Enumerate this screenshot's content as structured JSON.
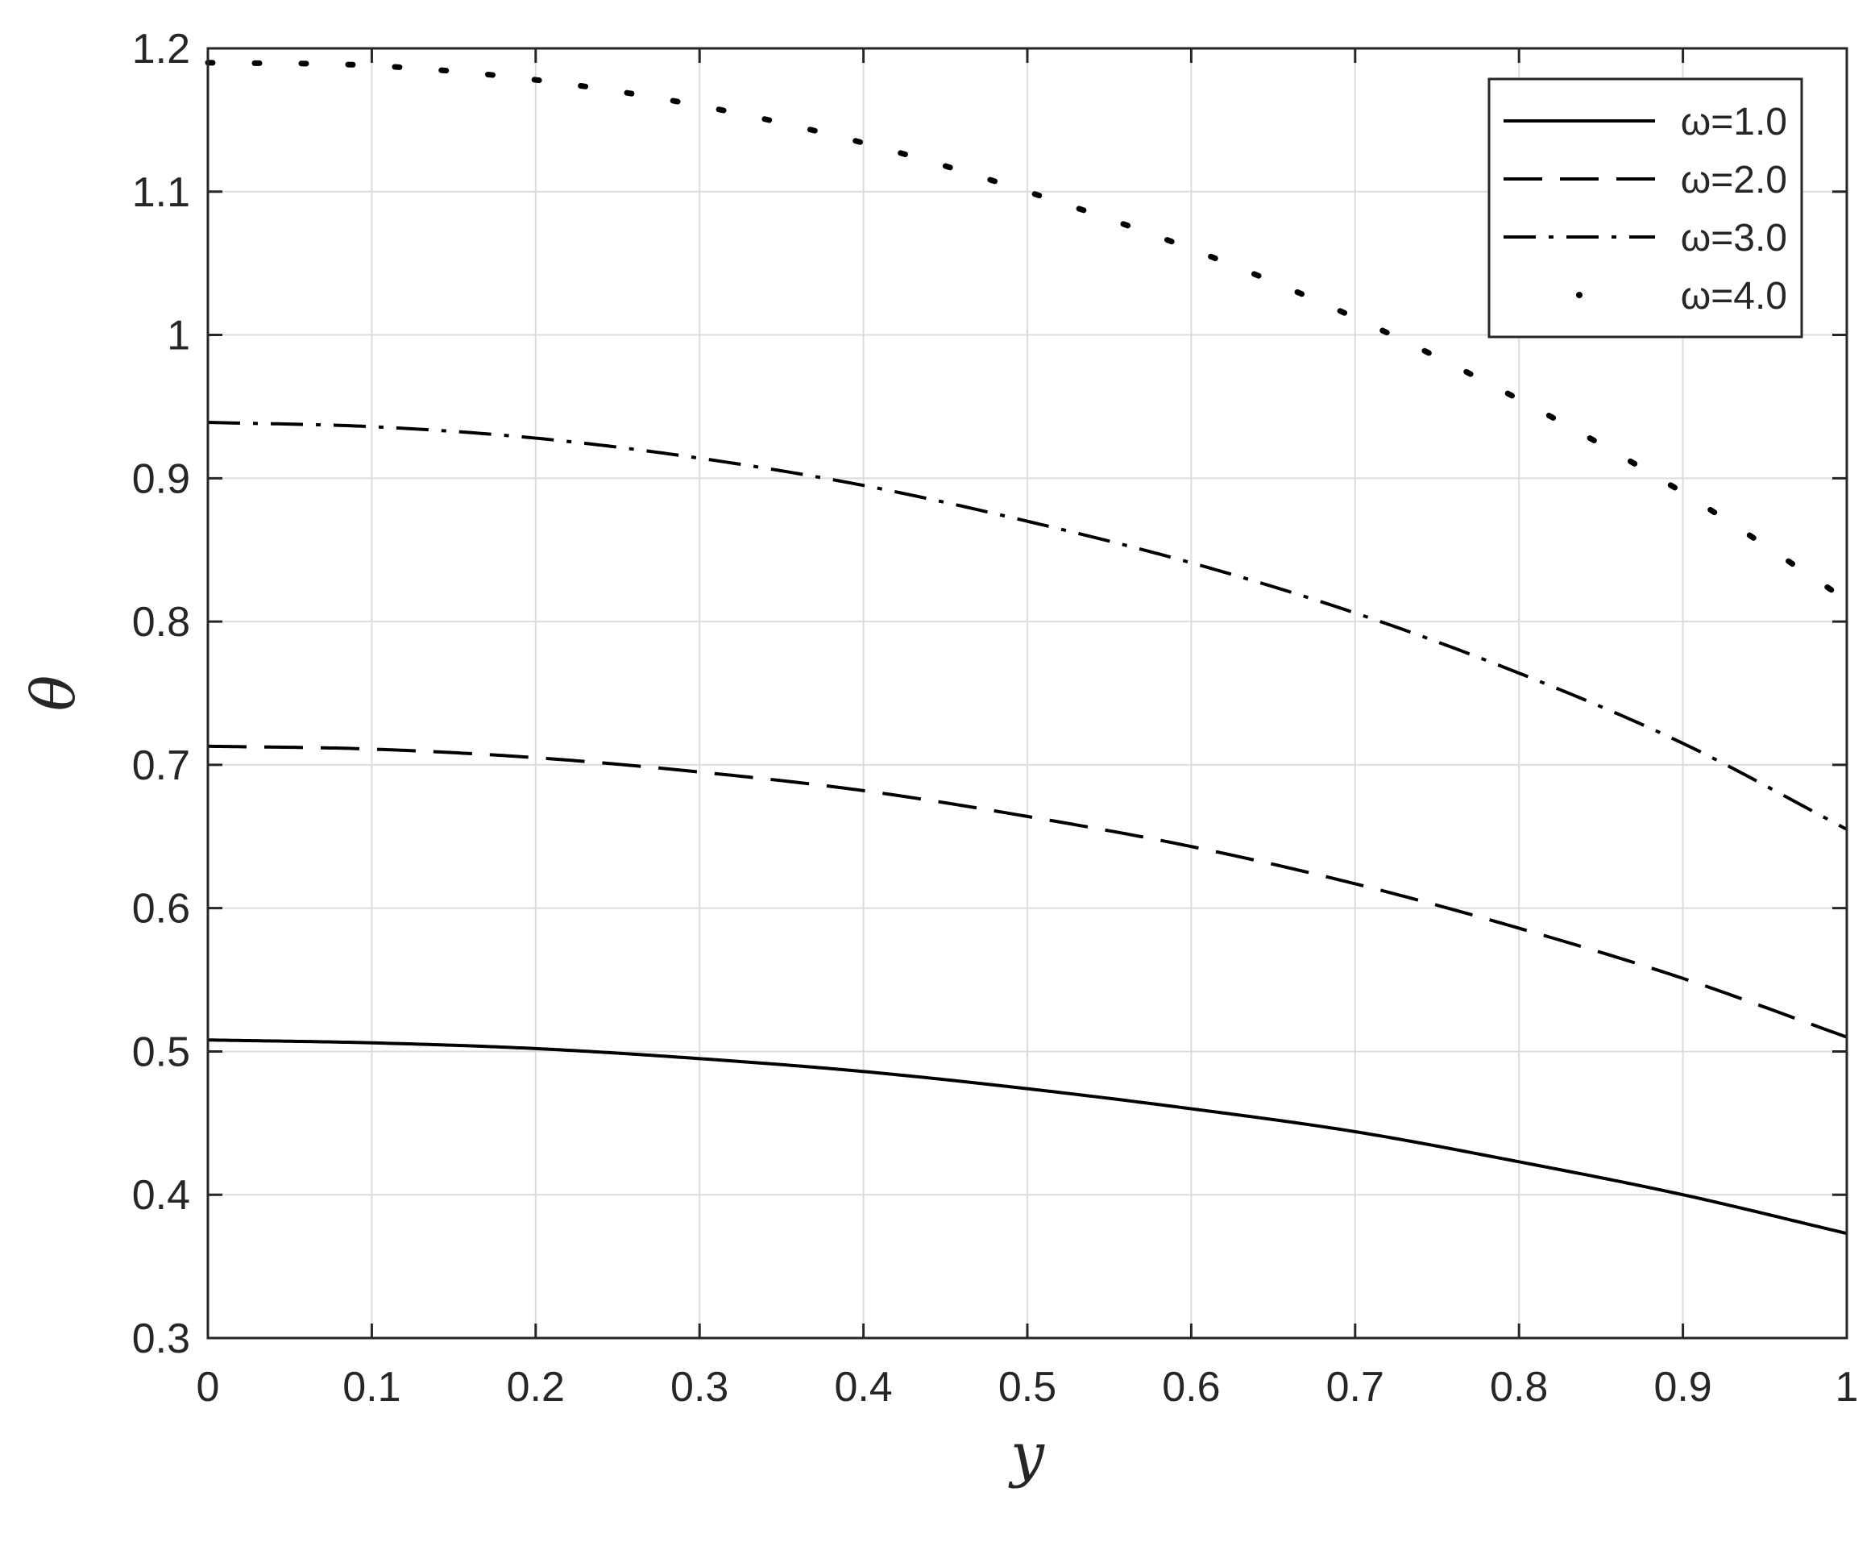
{
  "chart_data": {
    "type": "line",
    "title": "",
    "xlabel": "y",
    "ylabel": "θ",
    "xlim": [
      0,
      1
    ],
    "ylim": [
      0.3,
      1.2
    ],
    "xticks": [
      "0",
      "0.1",
      "0.2",
      "0.3",
      "0.4",
      "0.5",
      "0.6",
      "0.7",
      "0.8",
      "0.9",
      "1"
    ],
    "yticks": [
      "0.3",
      "0.4",
      "0.5",
      "0.6",
      "0.7",
      "0.8",
      "0.9",
      "1",
      "1.1",
      "1.2"
    ],
    "grid": true,
    "legend_position": "top-right",
    "x": [
      0,
      0.1,
      0.2,
      0.3,
      0.4,
      0.5,
      0.6,
      0.7,
      0.8,
      0.9,
      1.0
    ],
    "series": [
      {
        "name": "ω=1.0",
        "style": "solid",
        "values": [
          0.508,
          0.506,
          0.502,
          0.495,
          0.486,
          0.474,
          0.46,
          0.444,
          0.423,
          0.4,
          0.373
        ]
      },
      {
        "name": "ω=2.0",
        "style": "dashed",
        "values": [
          0.713,
          0.711,
          0.705,
          0.695,
          0.682,
          0.664,
          0.643,
          0.617,
          0.586,
          0.551,
          0.51
        ]
      },
      {
        "name": "ω=3.0",
        "style": "dashdot",
        "values": [
          0.939,
          0.936,
          0.928,
          0.914,
          0.895,
          0.87,
          0.841,
          0.806,
          0.764,
          0.715,
          0.655
        ]
      },
      {
        "name": "ω=4.0",
        "style": "dotted",
        "values": [
          1.19,
          1.188,
          1.178,
          1.16,
          1.134,
          1.1,
          1.06,
          1.012,
          0.955,
          0.89,
          0.815
        ]
      }
    ],
    "colors": {
      "line": "#000000",
      "axis": "#262626",
      "grid": "#dcdcdc"
    }
  }
}
